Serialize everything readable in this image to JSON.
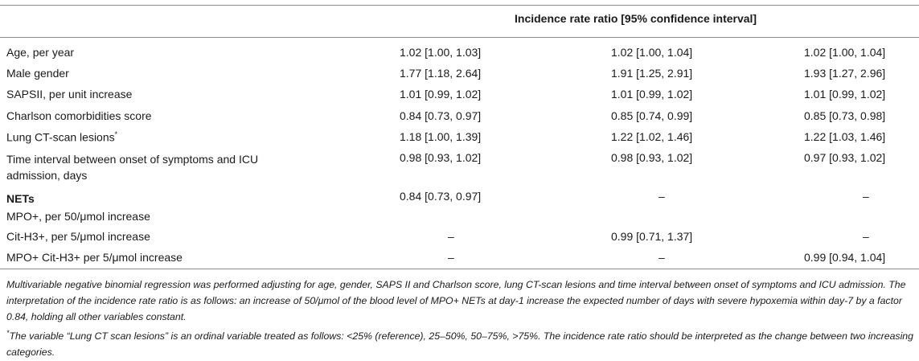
{
  "header": {
    "title": "Incidence rate ratio [95% confidence interval]"
  },
  "rows": [
    {
      "label": "Age, per year",
      "c1": "1.02 [1.00, 1.03]",
      "c2": "1.02 [1.00, 1.04]",
      "c3": "1.02 [1.00, 1.04]"
    },
    {
      "label": "Male gender",
      "c1": "1.77 [1.18, 2.64]",
      "c2": "1.91 [1.25, 2.91]",
      "c3": "1.93 [1.27, 2.96]"
    },
    {
      "label": "SAPSII, per unit increase",
      "c1": "1.01 [0.99, 1.02]",
      "c2": "1.01 [0.99, 1.02]",
      "c3": "1.01 [0.99, 1.02]"
    },
    {
      "label": "Charlson comorbidities score",
      "c1": "0.84 [0.73, 0.97]",
      "c2": "0.85 [0.74, 0.99]",
      "c3": "0.85 [0.73, 0.98]"
    },
    {
      "label": "Lung CT-scan lesions",
      "label_sup": "*",
      "c1": "1.18 [1.00, 1.39]",
      "c2": "1.22 [1.02, 1.46]",
      "c3": "1.22 [1.03, 1.46]"
    },
    {
      "label_line1": "Time interval between onset of symptoms and ICU",
      "label_line2": "admission, days",
      "c1": "0.98 [0.93, 1.02]",
      "c2": "0.98 [0.93, 1.02]",
      "c3": "0.97 [0.93, 1.02]"
    },
    {
      "label_bold": "NETs",
      "label_line2": "MPO+, per 50/μmol increase",
      "c1": "0.84 [0.73, 0.97]",
      "c2": "–",
      "c3": "–"
    },
    {
      "label": "Cit-H3+, per 5/μmol increase",
      "c1": "–",
      "c2": "0.99 [0.71, 1.37]",
      "c3": "–"
    },
    {
      "label": "MPO+ Cit-H3+ per 5/μmol increase",
      "c1": "–",
      "c2": "–",
      "c3": "0.99 [0.94, 1.04]"
    }
  ],
  "notes": {
    "main": "Multivariable negative binomial regression was performed adjusting for age, gender, SAPS II and Charlson score, lung CT-scan lesions and time interval between onset of symptoms and ICU admission. The interpretation of the incidence rate ratio is as follows: an increase of 50/μmol of the blood level of MPO+ NETs at day-1 increase the expected number of days with severe hypoxemia within day-7 by a factor 0.84, holding all other variables constant.",
    "footnote_mark": "*",
    "footnote": "The variable “Lung CT scan lesions” is an ordinal variable treated as follows: <25% (reference), 25–50%, 50–75%, >75%. The incidence rate ratio should be interpreted as the change between two increasing categories."
  }
}
